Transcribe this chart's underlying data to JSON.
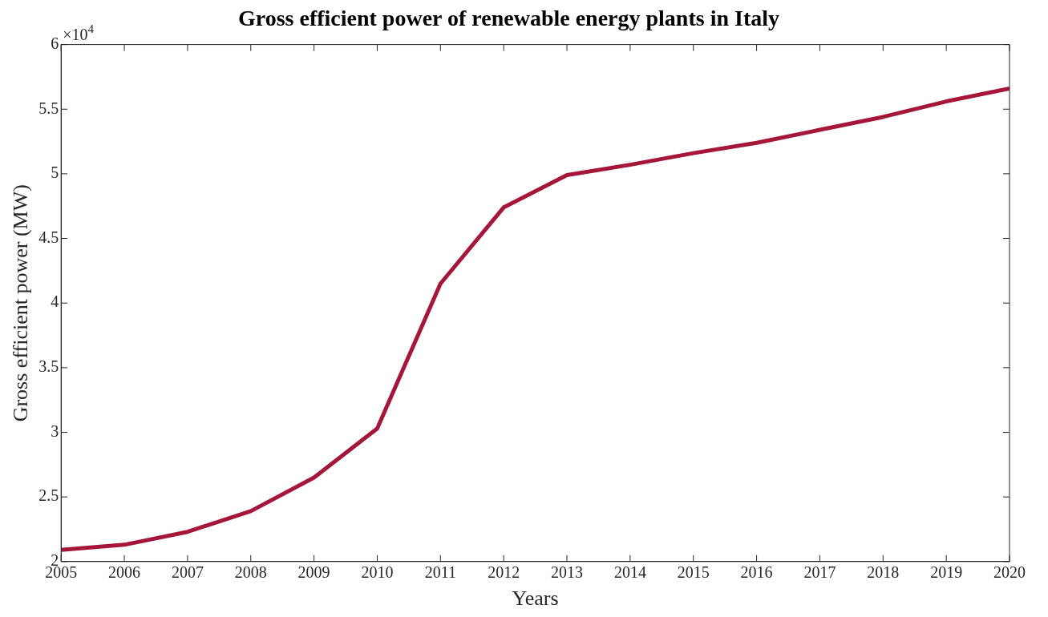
{
  "chart_data": {
    "type": "line",
    "title": "Gross efficient power of renewable energy plants in Italy",
    "xlabel": "Years",
    "ylabel": "Gross efficient power (MW)",
    "x": [
      2005,
      2006,
      2007,
      2008,
      2009,
      2010,
      2011,
      2012,
      2013,
      2014,
      2015,
      2016,
      2017,
      2018,
      2019,
      2020
    ],
    "series": [
      {
        "color": "#a5163a",
        "values": [
          2.09,
          2.13,
          2.23,
          2.39,
          2.65,
          3.03,
          4.15,
          4.74,
          4.99,
          5.07,
          5.16,
          5.24,
          5.34,
          5.44,
          5.56,
          5.66
        ]
      }
    ],
    "xlim": [
      2005,
      2020
    ],
    "xticks": [
      2005,
      2006,
      2007,
      2008,
      2009,
      2010,
      2011,
      2012,
      2013,
      2014,
      2015,
      2016,
      2017,
      2018,
      2019,
      2020
    ],
    "ylim": [
      2,
      6
    ],
    "yticks": [
      2,
      2.5,
      3,
      3.5,
      4,
      4.5,
      5,
      5.5,
      6
    ],
    "annotations": [
      "×10$^{4}$"
    ],
    "grid": false,
    "legend": false,
    "marker": "none",
    "line_style": "solid"
  }
}
